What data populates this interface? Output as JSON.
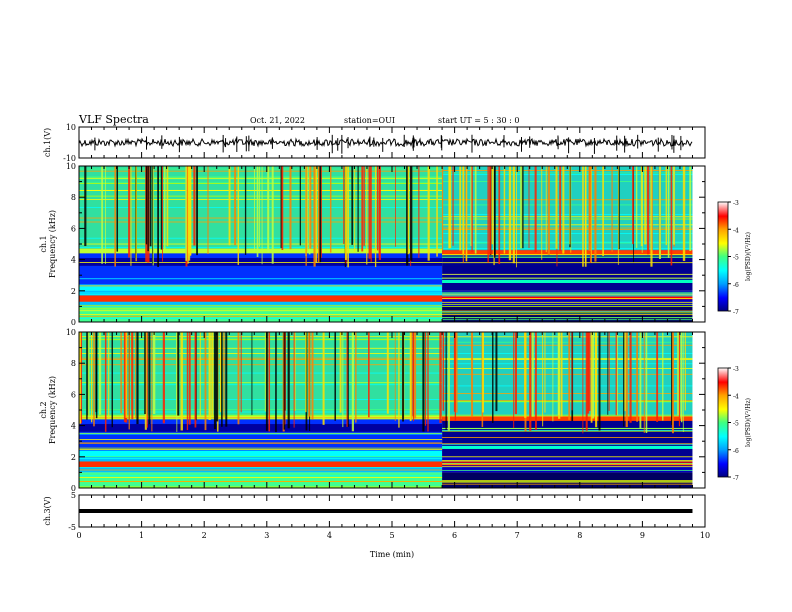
{
  "header": {
    "title": "VLF Spectra",
    "date": "Oct. 21, 2022",
    "station": "station=OUI",
    "start": "start  UT =  5 : 30 : 0"
  },
  "chart_data": [
    {
      "type": "line",
      "name": "waveform-ch1",
      "ylabel": "ch.1(V)",
      "ylim": [
        -10,
        10
      ],
      "yticks": [
        "10",
        "-10"
      ],
      "xlim": [
        0,
        10
      ]
    },
    {
      "type": "heatmap",
      "name": "spectrogram-ch1",
      "ylabel": "ch.1\nFrequency (kHz)",
      "ylim": [
        0,
        10
      ],
      "yticks": [
        "0",
        "2",
        "4",
        "6",
        "8",
        "10"
      ],
      "xlim": [
        0,
        10
      ],
      "colorbar": {
        "label": "log(PSD)(V²/Hz)",
        "range": [
          -7,
          -3
        ],
        "ticks": [
          "-3",
          "-4",
          "-5",
          "-6",
          "-7"
        ]
      }
    },
    {
      "type": "heatmap",
      "name": "spectrogram-ch2",
      "ylabel": "ch.2\nFrequency (kHz)",
      "ylim": [
        0,
        10
      ],
      "yticks": [
        "0",
        "2",
        "4",
        "6",
        "8",
        "10"
      ],
      "xlim": [
        0,
        10
      ],
      "colorbar": {
        "label": "log(PSD)(V²/Hz)",
        "range": [
          -7,
          -3
        ],
        "ticks": [
          "-3",
          "-4",
          "-5",
          "-6",
          "-7"
        ]
      }
    },
    {
      "type": "line",
      "name": "waveform-ch3",
      "ylabel": "ch.3(V)",
      "ylim": [
        -5,
        5
      ],
      "yticks": [
        "5",
        "-5"
      ],
      "xlim": [
        0,
        10
      ],
      "value": 0
    }
  ],
  "xaxis": {
    "label": "Time (min)",
    "ticks": [
      "0",
      "1",
      "2",
      "3",
      "4",
      "5",
      "6",
      "7",
      "8",
      "9",
      "10"
    ],
    "data_end_min": 9.8,
    "transition_min": 5.8
  },
  "colors": {
    "colormap": [
      "#000080",
      "#0000ff",
      "#00a0ff",
      "#00ffff",
      "#40ff80",
      "#c0ff00",
      "#ffff00",
      "#ffa000",
      "#ff0000",
      "#ff8080",
      "#ffffff"
    ],
    "trace": "#000000"
  }
}
